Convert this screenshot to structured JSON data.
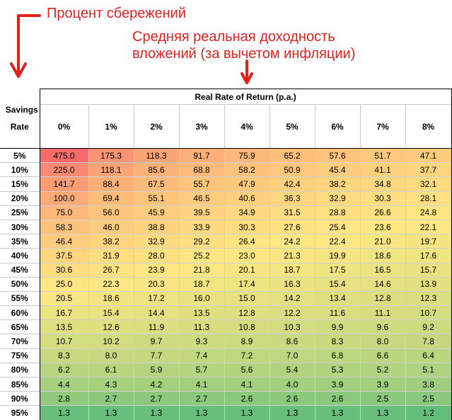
{
  "annotations": {
    "savings_rate_note": "Процент сбережений",
    "return_note_line1": "Средняя реальная доходность",
    "return_note_line2": "вложений (за вычетом инфляции)"
  },
  "colors": {
    "annotation": "#e3211c",
    "scale_high": "#f8696b",
    "scale_mid": "#ffe883",
    "scale_low": "#63be7b"
  },
  "chart_data": {
    "type": "heatmap",
    "title": "Real Rate of Return (p.a.)",
    "row_header_title": "Savings Rate",
    "columns": [
      "0%",
      "1%",
      "2%",
      "3%",
      "4%",
      "5%",
      "6%",
      "7%",
      "8%"
    ],
    "rows": [
      "5%",
      "10%",
      "15%",
      "20%",
      "25%",
      "30%",
      "35%",
      "40%",
      "45%",
      "50%",
      "55%",
      "60%",
      "65%",
      "70%",
      "75%",
      "80%",
      "85%",
      "90%",
      "95%"
    ],
    "values": [
      [
        "475.0",
        "175.3",
        "118.3",
        "91.7",
        "75.9",
        "65.2",
        "57.6",
        "51.7",
        "47.1"
      ],
      [
        "225.0",
        "118.1",
        "85.6",
        "68.8",
        "58.2",
        "50.9",
        "45.4",
        "41.1",
        "37.7"
      ],
      [
        "141.7",
        "88.4",
        "67.5",
        "55.7",
        "47.9",
        "42.4",
        "38.2",
        "34.8",
        "32.1"
      ],
      [
        "100.0",
        "69.4",
        "55.1",
        "46.5",
        "40.6",
        "36.3",
        "32.9",
        "30.3",
        "28.1"
      ],
      [
        "75.0",
        "56.0",
        "45.9",
        "39.5",
        "34.9",
        "31.5",
        "28.8",
        "26.6",
        "24.8"
      ],
      [
        "58.3",
        "46.0",
        "38.8",
        "33.9",
        "30.3",
        "27.6",
        "25.4",
        "23.6",
        "22.1"
      ],
      [
        "46.4",
        "38.2",
        "32.9",
        "29.2",
        "26.4",
        "24.2",
        "22.4",
        "21.0",
        "19.7"
      ],
      [
        "37.5",
        "31.9",
        "28.0",
        "25.2",
        "23.0",
        "21.3",
        "19.9",
        "18.6",
        "17.6"
      ],
      [
        "30.6",
        "26.7",
        "23.9",
        "21.8",
        "20.1",
        "18.7",
        "17.5",
        "16.5",
        "15.7"
      ],
      [
        "25.0",
        "22.3",
        "20.3",
        "18.7",
        "17.4",
        "16.3",
        "15.4",
        "14.6",
        "13.9"
      ],
      [
        "20.5",
        "18.6",
        "17.2",
        "16.0",
        "15.0",
        "14.2",
        "13.4",
        "12.8",
        "12.3"
      ],
      [
        "16.7",
        "15.4",
        "14.4",
        "13.5",
        "12.8",
        "12.2",
        "11.6",
        "11.1",
        "10.7"
      ],
      [
        "13.5",
        "12.6",
        "11.9",
        "11.3",
        "10.8",
        "10.3",
        "9.9",
        "9.6",
        "9.2"
      ],
      [
        "10.7",
        "10.2",
        "9.7",
        "9.3",
        "8.9",
        "8.6",
        "8.3",
        "8.0",
        "7.8"
      ],
      [
        "8.3",
        "8.0",
        "7.7",
        "7.4",
        "7.2",
        "7.0",
        "6.8",
        "6.6",
        "6.4"
      ],
      [
        "6.2",
        "6.1",
        "5.9",
        "5.7",
        "5.6",
        "5.4",
        "5.3",
        "5.2",
        "5.1"
      ],
      [
        "4.4",
        "4.3",
        "4.2",
        "4.1",
        "4.1",
        "4.0",
        "3.9",
        "3.9",
        "3.8"
      ],
      [
        "2.8",
        "2.7",
        "2.7",
        "2.7",
        "2.6",
        "2.6",
        "2.6",
        "2.5",
        "2.5"
      ],
      [
        "1.3",
        "1.3",
        "1.3",
        "1.3",
        "1.3",
        "1.3",
        "1.3",
        "1.3",
        "1.2"
      ]
    ]
  }
}
